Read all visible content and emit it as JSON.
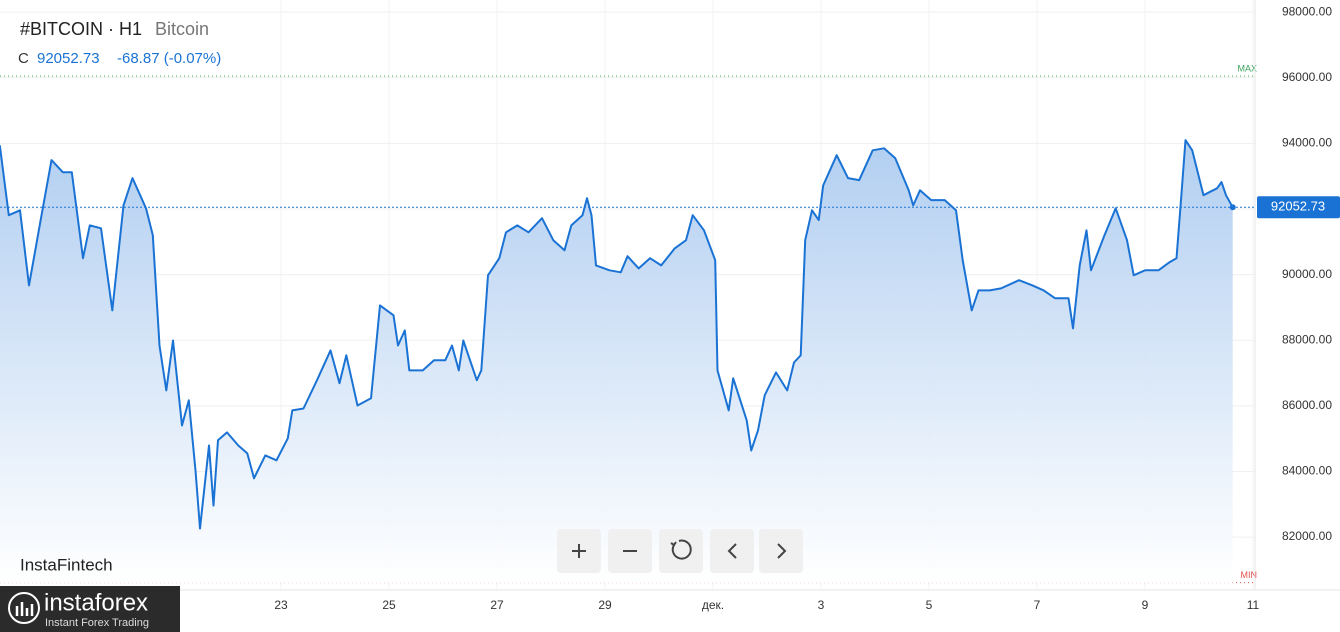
{
  "header": {
    "symbol": "#BITCOIN · H1",
    "name": "Bitcoin",
    "close_label": "C",
    "close": "92052.73",
    "change": "-68.87 (-0.07%)"
  },
  "watermark": "InstaFintech",
  "logo": {
    "name": "instaforex",
    "tagline": "Instant Forex Trading"
  },
  "chart_data": {
    "type": "area",
    "x": [
      -77,
      -73,
      -68,
      -64,
      -59,
      -54,
      -49,
      -45,
      -40,
      -37,
      -32,
      -27,
      -22,
      -18,
      -12,
      -9,
      -6,
      -3,
      0,
      4,
      7,
      10,
      12,
      16,
      18,
      20,
      24,
      29,
      33,
      36,
      41,
      46,
      51,
      53,
      58,
      64,
      70,
      74,
      77,
      82,
      88,
      92,
      98,
      100,
      103,
      105,
      111,
      116,
      121,
      124,
      127,
      129,
      135,
      137,
      140,
      145,
      148,
      153,
      158,
      164,
      169,
      174,
      177,
      182,
      184,
      186,
      188,
      194,
      199,
      202,
      207,
      212,
      217,
      223,
      228,
      231,
      236,
      241,
      242,
      247,
      249,
      255,
      257,
      260,
      263,
      268,
      273,
      276,
      279,
      281,
      284,
      287,
      289,
      295,
      300,
      305,
      311,
      316,
      321,
      327,
      329,
      332,
      337,
      343,
      348,
      351,
      355,
      358,
      363,
      368,
      376,
      382,
      387,
      392,
      398,
      400,
      403,
      406,
      408,
      414,
      419,
      424,
      427,
      432,
      438,
      443,
      446,
      448,
      450,
      453,
      458,
      464,
      466,
      468,
      471
    ],
    "series": [
      {
        "name": "Bitcoin",
        "color": "#1a73d4",
        "values": [
          93940,
          91810,
          91960,
          89670,
          91600,
          93490,
          93120,
          93120,
          90500,
          91500,
          91410,
          88910,
          92110,
          92940,
          92020,
          91200,
          87840,
          86470,
          87990,
          85400,
          86170,
          84030,
          82260,
          84790,
          82960,
          84950,
          85190,
          84790,
          84550,
          83790,
          84490,
          84340,
          85010,
          85860,
          85920,
          86780,
          87690,
          86690,
          87540,
          86010,
          86230,
          89060,
          88760,
          87840,
          88300,
          87080,
          87080,
          87390,
          87390,
          87840,
          87080,
          87990,
          86780,
          87080,
          89980,
          90500,
          91290,
          91500,
          91290,
          91720,
          91050,
          90740,
          91500,
          91810,
          92330,
          91810,
          90280,
          90130,
          90070,
          90560,
          90190,
          90500,
          90280,
          90800,
          91050,
          91810,
          91350,
          90440,
          87080,
          85860,
          86840,
          85560,
          84640,
          85250,
          86320,
          87020,
          86470,
          87320,
          87540,
          91050,
          91960,
          91660,
          92720,
          93640,
          92940,
          92880,
          93790,
          93850,
          93550,
          92570,
          92110,
          92570,
          92270,
          92270,
          91960,
          90440,
          88910,
          89520,
          89520,
          89580,
          89830,
          89670,
          89520,
          89280,
          89280,
          88360,
          90280,
          91350,
          90130,
          91200,
          92020,
          91050,
          89980,
          90130,
          90130,
          90380,
          90500,
          92270,
          94100,
          93790,
          92420,
          92630,
          92820,
          92420,
          92052.73
        ]
      }
    ],
    "xlim": [
      -76.9,
      480.9
    ],
    "ylim": [
      80600,
      98370
    ],
    "yticks": [
      {
        "value": 82000,
        "label": "82000.00"
      },
      {
        "value": 84000,
        "label": "84000.00"
      },
      {
        "value": 86000,
        "label": "86000.00"
      },
      {
        "value": 88000,
        "label": "88000.00"
      },
      {
        "value": 90000,
        "label": "90000.00"
      },
      {
        "value": 92000,
        "label": "92000.00"
      },
      {
        "value": 94000,
        "label": "94000.00"
      },
      {
        "value": 96000,
        "label": "96000.00"
      },
      {
        "value": 98000,
        "label": "98000.00"
      }
    ],
    "xticks": [
      {
        "value": 48,
        "label": "23"
      },
      {
        "value": 96,
        "label": "25"
      },
      {
        "value": 144,
        "label": "27"
      },
      {
        "value": 192,
        "label": "29"
      },
      {
        "value": 240,
        "label": "дек."
      },
      {
        "value": 288,
        "label": "3"
      },
      {
        "value": 336,
        "label": "5"
      },
      {
        "value": 384,
        "label": "7"
      },
      {
        "value": 432,
        "label": "9"
      },
      {
        "value": 480,
        "label": "11"
      }
    ],
    "max_line": {
      "value": 96050,
      "label": "MAX",
      "color": "#3aa35a"
    },
    "min_line": {
      "value": 80610,
      "label": "MIN",
      "color": "#e0504a"
    },
    "grid": true
  }
}
